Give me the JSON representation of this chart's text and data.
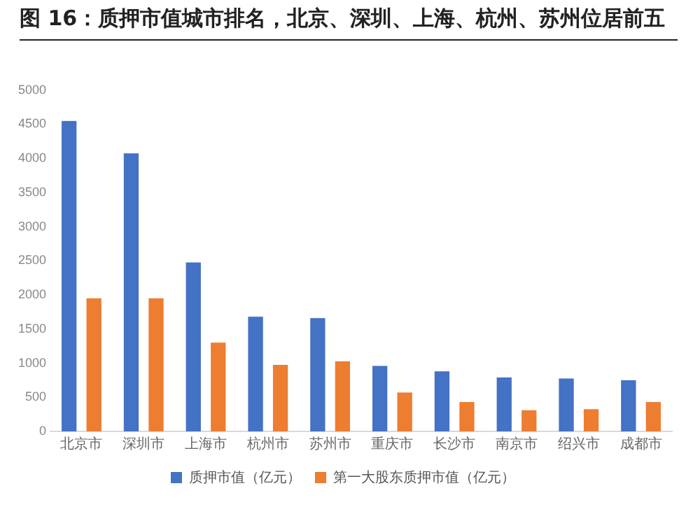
{
  "chart_data": {
    "type": "bar",
    "title": "图 16：质押市值城市排名，北京、深圳、上海、杭州、苏州位居前五",
    "categories": [
      "北京市",
      "深圳市",
      "上海市",
      "杭州市",
      "苏州市",
      "重庆市",
      "长沙市",
      "南京市",
      "绍兴市",
      "成都市"
    ],
    "series": [
      {
        "name": "质押市值（亿元）",
        "color": "#4472c4",
        "values": [
          4550,
          4075,
          2475,
          1680,
          1660,
          960,
          880,
          790,
          775,
          750
        ]
      },
      {
        "name": "第一大股东质押市值（亿元）",
        "color": "#ed7d31",
        "values": [
          1950,
          1950,
          1300,
          975,
          1025,
          570,
          430,
          310,
          325,
          430
        ]
      }
    ],
    "ylim": [
      0,
      5000
    ],
    "yticks": [
      0,
      500,
      1000,
      1500,
      2000,
      2500,
      3000,
      3500,
      4000,
      4500,
      5000
    ],
    "grid": false,
    "legend": "bottom"
  }
}
